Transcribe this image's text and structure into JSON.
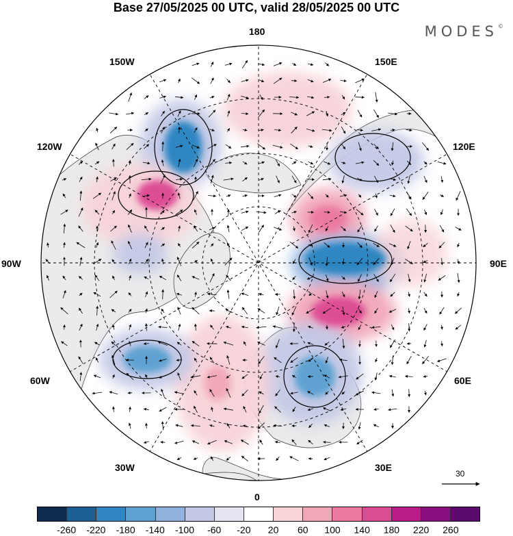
{
  "title": "Base 27/05/2025 00 UTC, valid 28/05/2025 00 UTC",
  "logo": "MODES",
  "logo_mark": "©",
  "map": {
    "projection": "north-polar-stereographic",
    "longitude_labels": {
      "n180": "180",
      "w150": "150W",
      "e150": "150E",
      "w120": "120W",
      "e120": "120E",
      "w90": "90W",
      "e90": "90E",
      "w60": "60W",
      "e60": "60E",
      "w30": "30W",
      "e30": "30E",
      "s0": "0"
    },
    "land_color": "#ebebeb",
    "ocean_color": "#ffffff",
    "graticule": "dashed"
  },
  "reference_vector": {
    "label": "30"
  },
  "colorbar": {
    "ticks": [
      "-260",
      "-220",
      "-180",
      "-140",
      "-100",
      "-60",
      "-20",
      "20",
      "60",
      "100",
      "140",
      "180",
      "220",
      "260"
    ],
    "colors": [
      "#0b2c4e",
      "#1b5f94",
      "#2f86c2",
      "#5ea2d2",
      "#8fb3de",
      "#c3c8e6",
      "#e4e4f2",
      "#ffffff",
      "#f8d3d8",
      "#f1a7b8",
      "#eb7aa2",
      "#dd4d94",
      "#bb1d88",
      "#8a0f7f",
      "#5b0a6d"
    ]
  },
  "anomalies": [
    {
      "name": "pacific-low",
      "sign": "negative",
      "peak": -180
    },
    {
      "name": "alaska-high",
      "sign": "positive",
      "peak": 180
    },
    {
      "name": "atlantic-low",
      "sign": "negative",
      "peak": -160
    },
    {
      "name": "siberia-low",
      "sign": "negative",
      "peak": -180
    },
    {
      "name": "central-asia-high",
      "sign": "positive",
      "peak": 180
    },
    {
      "name": "europe-low",
      "sign": "negative",
      "peak": -140
    },
    {
      "name": "east-atlantic-high",
      "sign": "positive",
      "peak": 140
    },
    {
      "name": "bering-high",
      "sign": "positive",
      "peak": 60
    },
    {
      "name": "east-siberia-high",
      "sign": "positive",
      "peak": 140
    }
  ]
}
